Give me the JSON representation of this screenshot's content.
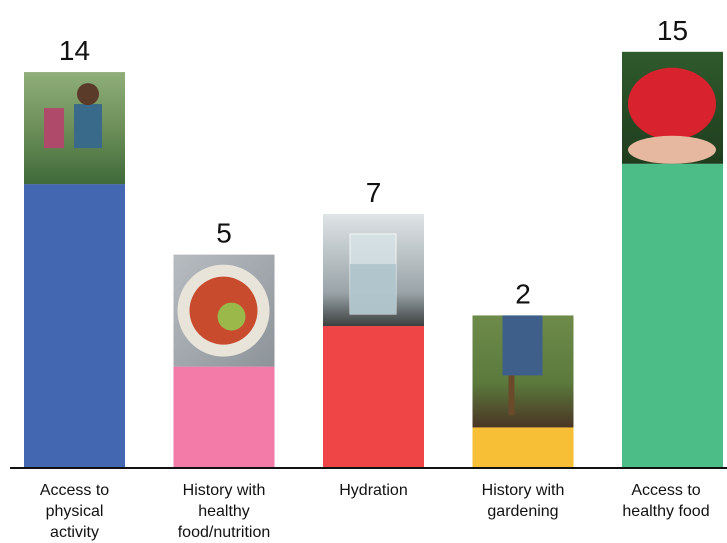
{
  "chart_data": {
    "type": "bar",
    "categories": [
      "Access to physical activity",
      "History with healthy food/nutrition",
      "Hydration",
      "History with gardening",
      "Access to healthy food"
    ],
    "values": [
      14,
      5,
      7,
      2,
      15
    ],
    "colors": [
      "#4467b1",
      "#f27ba8",
      "#ef4546",
      "#f6bf36",
      "#4cbd86"
    ]
  }
}
